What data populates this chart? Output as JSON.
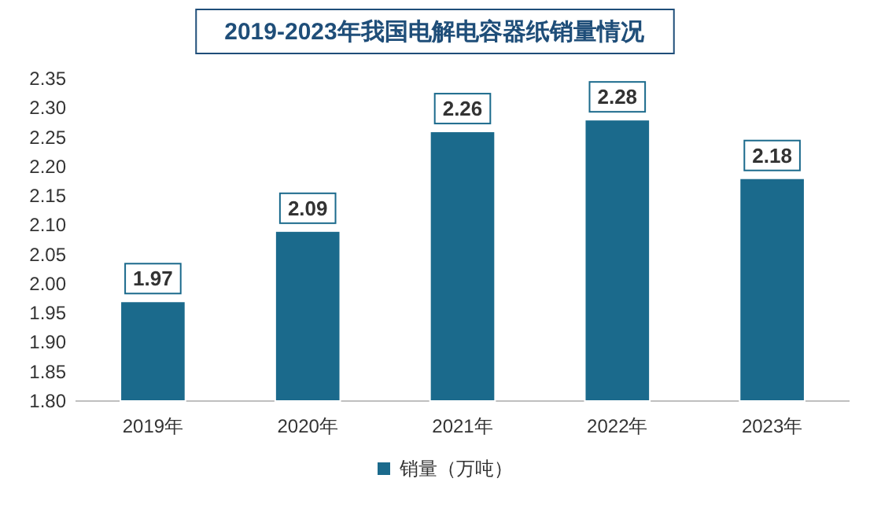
{
  "chart_data": {
    "type": "bar",
    "title": "2019-2023年我国电解电容器纸销量情况",
    "categories": [
      "2019年",
      "2020年",
      "2021年",
      "2022年",
      "2023年"
    ],
    "series": [
      {
        "name": "销量（万吨）",
        "color": "#1b6a8c",
        "values": [
          1.97,
          2.09,
          2.26,
          2.28,
          2.18
        ]
      }
    ],
    "ylim": [
      1.8,
      2.35
    ],
    "yticks": [
      {
        "value": 1.8,
        "label": "1.80"
      },
      {
        "value": 1.85,
        "label": "1.85"
      },
      {
        "value": 1.9,
        "label": "1.90"
      },
      {
        "value": 1.95,
        "label": "1.95"
      },
      {
        "value": 2.0,
        "label": "2.00"
      },
      {
        "value": 2.05,
        "label": "2.05"
      },
      {
        "value": 2.1,
        "label": "2.10"
      },
      {
        "value": 2.15,
        "label": "2.15"
      },
      {
        "value": 2.2,
        "label": "2.20"
      },
      {
        "value": 2.25,
        "label": "2.25"
      },
      {
        "value": 2.3,
        "label": "2.30"
      },
      {
        "value": 2.35,
        "label": "2.35"
      }
    ],
    "data_labels": true,
    "legend": "bottom",
    "grid": false
  }
}
